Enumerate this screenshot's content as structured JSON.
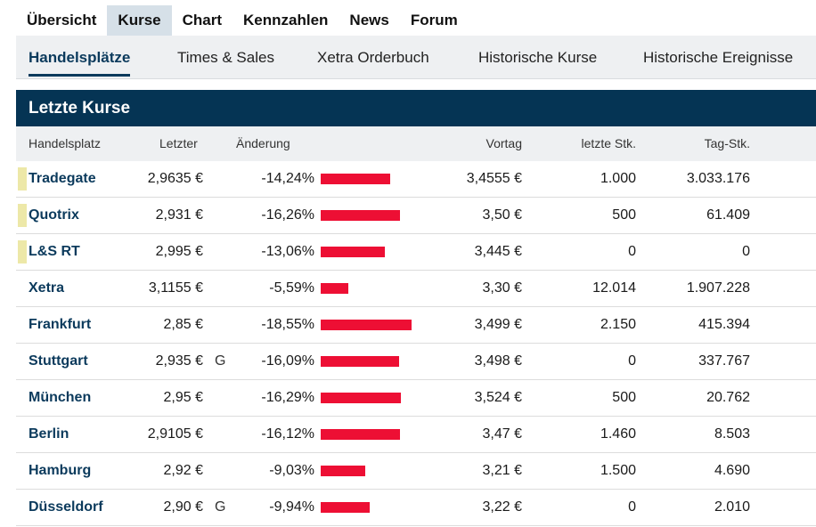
{
  "topnav": {
    "tabs": [
      "Übersicht",
      "Kurse",
      "Chart",
      "Kennzahlen",
      "News",
      "Forum"
    ],
    "active": 1
  },
  "subnav": {
    "tabs": [
      "Handelsplätze",
      "Times & Sales",
      "Xetra Orderbuch",
      "Historische Kurse",
      "Historische Ereignisse"
    ],
    "active": 0
  },
  "panel": {
    "title": "Letzte Kurse"
  },
  "columns": {
    "venue": "Handelsplatz",
    "last": "Letzter",
    "change": "Änderung",
    "prev": "Vortag",
    "last_qty": "letzte Stk.",
    "day_qty": "Tag-Stk."
  },
  "colors": {
    "bar": "#ed0f34",
    "header": "#053454",
    "highlight": "#ede8a8"
  },
  "rows": [
    {
      "name": "Tradegate",
      "last": "2,9635 €",
      "flag": "",
      "change": "-14,24%",
      "change_pct": 14.24,
      "prev": "3,4555 €",
      "last_qty": "1.000",
      "day_qty": "3.033.176",
      "highlight": true
    },
    {
      "name": "Quotrix",
      "last": "2,931 €",
      "flag": "",
      "change": "-16,26%",
      "change_pct": 16.26,
      "prev": "3,50 €",
      "last_qty": "500",
      "day_qty": "61.409",
      "highlight": true
    },
    {
      "name": "L&S RT",
      "last": "2,995 €",
      "flag": "",
      "change": "-13,06%",
      "change_pct": 13.06,
      "prev": "3,445 €",
      "last_qty": "0",
      "day_qty": "0",
      "highlight": true
    },
    {
      "name": "Xetra",
      "last": "3,1155 €",
      "flag": "",
      "change": "-5,59%",
      "change_pct": 5.59,
      "prev": "3,30 €",
      "last_qty": "12.014",
      "day_qty": "1.907.228",
      "highlight": false
    },
    {
      "name": "Frankfurt",
      "last": "2,85 €",
      "flag": "",
      "change": "-18,55%",
      "change_pct": 18.55,
      "prev": "3,499 €",
      "last_qty": "2.150",
      "day_qty": "415.394",
      "highlight": false
    },
    {
      "name": "Stuttgart",
      "last": "2,935 €",
      "flag": "G",
      "change": "-16,09%",
      "change_pct": 16.09,
      "prev": "3,498 €",
      "last_qty": "0",
      "day_qty": "337.767",
      "highlight": false
    },
    {
      "name": "München",
      "last": "2,95 €",
      "flag": "",
      "change": "-16,29%",
      "change_pct": 16.29,
      "prev": "3,524 €",
      "last_qty": "500",
      "day_qty": "20.762",
      "highlight": false
    },
    {
      "name": "Berlin",
      "last": "2,9105 €",
      "flag": "",
      "change": "-16,12%",
      "change_pct": 16.12,
      "prev": "3,47 €",
      "last_qty": "1.460",
      "day_qty": "8.503",
      "highlight": false
    },
    {
      "name": "Hamburg",
      "last": "2,92 €",
      "flag": "",
      "change": "-9,03%",
      "change_pct": 9.03,
      "prev": "3,21 €",
      "last_qty": "1.500",
      "day_qty": "4.690",
      "highlight": false
    },
    {
      "name": "Düsseldorf",
      "last": "2,90 €",
      "flag": "G",
      "change": "-9,94%",
      "change_pct": 9.94,
      "prev": "3,22 €",
      "last_qty": "0",
      "day_qty": "2.010",
      "highlight": false
    }
  ]
}
